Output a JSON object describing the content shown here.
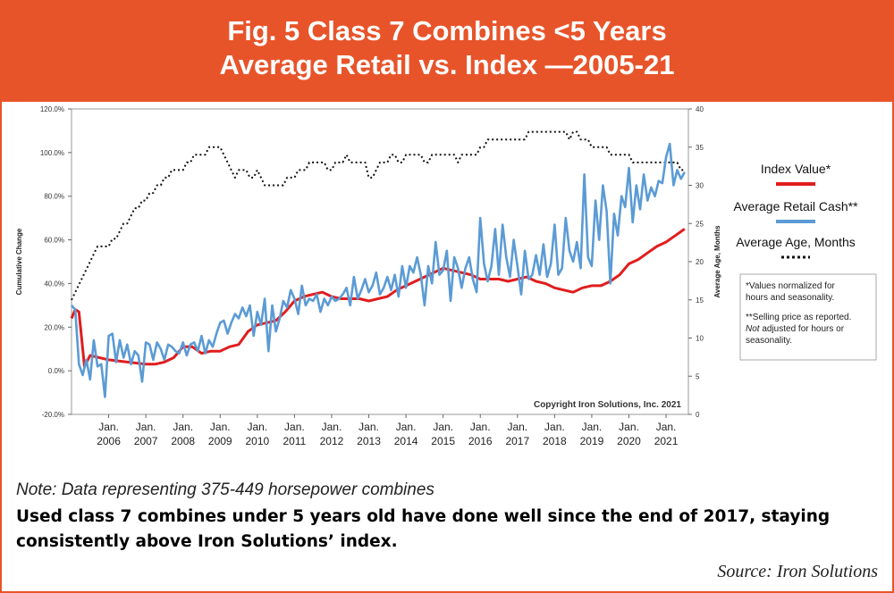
{
  "header": {
    "title_line1": "Fig. 5 Class 7 Combines <5 Years",
    "title_line2": "Average Retail vs. Index —2005-21"
  },
  "colors": {
    "brand": "#e8542a",
    "index": "#e11d1d",
    "retail": "#5b9bd5",
    "age": "#111111"
  },
  "note": "Note: Data representing 375-449 horsepower combines",
  "description": "Used class 7 combines under 5 years old have done well since the end of 2017, staying consistently above Iron Solutions’ index.",
  "source": "Source: Iron Solutions",
  "chart_data": {
    "type": "line",
    "copyright": "Copyright Iron Solutions, Inc. 2021",
    "xlabel": "",
    "ylabel_left": "Cumulative Change",
    "ylabel_right": "Average Age, Months",
    "ylim_left": [
      -20,
      120
    ],
    "ylim_right": [
      0,
      40
    ],
    "yticks_left": [
      "-20.0%",
      "0.0%",
      "20.0%",
      "40.0%",
      "60.0%",
      "80.0%",
      "100.0%",
      "120.0%"
    ],
    "yticks_right": [
      "0",
      "5",
      "10",
      "15",
      "20",
      "25",
      "30",
      "35",
      "40"
    ],
    "xlim": [
      2005.0,
      2021.6
    ],
    "xticks": [
      {
        "line1": "Jan.",
        "line2": "2006",
        "x": 2006
      },
      {
        "line1": "Jan.",
        "line2": "2007",
        "x": 2007
      },
      {
        "line1": "Jan.",
        "line2": "2008",
        "x": 2008
      },
      {
        "line1": "Jan.",
        "line2": "2009",
        "x": 2009
      },
      {
        "line1": "Jan.",
        "line2": "2010",
        "x": 2010
      },
      {
        "line1": "Jan.",
        "line2": "2011",
        "x": 2011
      },
      {
        "line1": "Jan.",
        "line2": "2012",
        "x": 2012
      },
      {
        "line1": "Jan.",
        "line2": "2013",
        "x": 2013
      },
      {
        "line1": "Jan.",
        "line2": "2014",
        "x": 2014
      },
      {
        "line1": "Jan.",
        "line2": "2015",
        "x": 2015
      },
      {
        "line1": "Jan.",
        "line2": "2016",
        "x": 2016
      },
      {
        "line1": "Jan.",
        "line2": "2017",
        "x": 2017
      },
      {
        "line1": "Jan.",
        "line2": "2018",
        "x": 2018
      },
      {
        "line1": "Jan.",
        "line2": "2019",
        "x": 2019
      },
      {
        "line1": "Jan.",
        "line2": "2020",
        "x": 2020
      },
      {
        "line1": "Jan.",
        "line2": "2021",
        "x": 2021
      }
    ],
    "legend": {
      "placement": "right",
      "entries": [
        {
          "name": "Index Value*",
          "style": "solid-red"
        },
        {
          "name": "Average Retail Cash**",
          "style": "solid-blue"
        },
        {
          "name": "Average Age, Months",
          "style": "dotted-black"
        }
      ],
      "footnotes": [
        "*Values normalized for",
        "hours and seasonality.",
        "**Selling price as reported.",
        "Not adjusted for hours or",
        "seasonality."
      ]
    },
    "series": [
      {
        "name": "Index Value*",
        "axis": "left",
        "x": [
          2005.0,
          2005.1,
          2005.2,
          2005.35,
          2005.5,
          2005.75,
          2006.0,
          2006.5,
          2007.0,
          2007.25,
          2007.5,
          2007.75,
          2008.0,
          2008.25,
          2008.5,
          2008.75,
          2009.0,
          2009.25,
          2009.5,
          2009.75,
          2010.0,
          2010.25,
          2010.5,
          2010.75,
          2011.0,
          2011.25,
          2011.5,
          2011.75,
          2012.0,
          2012.25,
          2012.5,
          2012.75,
          2013.0,
          2013.25,
          2013.5,
          2013.75,
          2014.0,
          2014.25,
          2014.5,
          2014.75,
          2015.0,
          2015.25,
          2015.5,
          2015.75,
          2016.0,
          2016.25,
          2016.5,
          2016.75,
          2017.0,
          2017.25,
          2017.5,
          2017.75,
          2018.0,
          2018.25,
          2018.5,
          2018.75,
          2019.0,
          2019.25,
          2019.5,
          2019.75,
          2020.0,
          2020.25,
          2020.5,
          2020.75,
          2021.0,
          2021.25,
          2021.5
        ],
        "values": [
          24,
          28,
          27,
          2,
          7,
          6,
          5,
          4,
          3,
          3,
          4,
          6,
          11,
          11,
          8,
          9,
          9,
          11,
          12,
          18,
          21,
          22,
          23,
          27,
          32,
          34,
          35,
          36,
          34,
          33,
          33,
          33,
          32,
          33,
          34,
          37,
          39,
          41,
          43,
          45,
          47,
          46,
          45,
          44,
          42,
          42,
          42,
          41,
          42,
          43,
          41,
          40,
          38,
          37,
          36,
          38,
          39,
          39,
          41,
          44,
          49,
          51,
          54,
          57,
          59,
          62,
          65
        ]
      },
      {
        "name": "Average Retail Cash**",
        "axis": "left",
        "x": [
          2005.0,
          2005.1,
          2005.2,
          2005.3,
          2005.4,
          2005.5,
          2005.6,
          2005.7,
          2005.8,
          2005.9,
          2006.0,
          2006.1,
          2006.2,
          2006.3,
          2006.4,
          2006.5,
          2006.6,
          2006.7,
          2006.8,
          2006.9,
          2007.0,
          2007.1,
          2007.2,
          2007.3,
          2007.4,
          2007.5,
          2007.6,
          2007.7,
          2007.8,
          2007.9,
          2008.0,
          2008.1,
          2008.2,
          2008.3,
          2008.4,
          2008.5,
          2008.6,
          2008.7,
          2008.8,
          2008.9,
          2009.0,
          2009.1,
          2009.2,
          2009.3,
          2009.4,
          2009.5,
          2009.6,
          2009.7,
          2009.8,
          2009.9,
          2010.0,
          2010.1,
          2010.2,
          2010.3,
          2010.4,
          2010.5,
          2010.6,
          2010.7,
          2010.8,
          2010.9,
          2011.0,
          2011.1,
          2011.2,
          2011.3,
          2011.4,
          2011.5,
          2011.6,
          2011.7,
          2011.8,
          2011.9,
          2012.0,
          2012.1,
          2012.2,
          2012.3,
          2012.4,
          2012.5,
          2012.6,
          2012.7,
          2012.8,
          2012.9,
          2013.0,
          2013.1,
          2013.2,
          2013.3,
          2013.4,
          2013.5,
          2013.6,
          2013.7,
          2013.8,
          2013.9,
          2014.0,
          2014.1,
          2014.2,
          2014.3,
          2014.4,
          2014.5,
          2014.6,
          2014.7,
          2014.8,
          2014.9,
          2015.0,
          2015.1,
          2015.2,
          2015.3,
          2015.4,
          2015.5,
          2015.6,
          2015.7,
          2015.8,
          2015.9,
          2016.0,
          2016.1,
          2016.2,
          2016.3,
          2016.4,
          2016.5,
          2016.6,
          2016.7,
          2016.8,
          2016.9,
          2017.0,
          2017.1,
          2017.2,
          2017.3,
          2017.4,
          2017.5,
          2017.6,
          2017.7,
          2017.8,
          2017.9,
          2018.0,
          2018.1,
          2018.2,
          2018.3,
          2018.4,
          2018.5,
          2018.6,
          2018.7,
          2018.8,
          2018.9,
          2019.0,
          2019.1,
          2019.2,
          2019.3,
          2019.4,
          2019.5,
          2019.6,
          2019.7,
          2019.8,
          2019.9,
          2020.0,
          2020.1,
          2020.2,
          2020.3,
          2020.4,
          2020.5,
          2020.6,
          2020.7,
          2020.8,
          2020.9,
          2021.0,
          2021.1,
          2021.2,
          2021.3,
          2021.4,
          2021.5
        ],
        "values": [
          30,
          28,
          3,
          -2,
          5,
          -4,
          14,
          2,
          3,
          -12,
          16,
          17,
          4,
          14,
          6,
          12,
          3,
          9,
          7,
          -5,
          13,
          12,
          5,
          13,
          10,
          5,
          12,
          11,
          9,
          8,
          13,
          7,
          12,
          13,
          9,
          16,
          8,
          14,
          11,
          17,
          22,
          23,
          17,
          22,
          26,
          24,
          29,
          25,
          30,
          16,
          27,
          21,
          33,
          9,
          30,
          18,
          24,
          32,
          29,
          37,
          33,
          26,
          39,
          30,
          33,
          32,
          35,
          27,
          33,
          30,
          34,
          32,
          33,
          35,
          38,
          30,
          43,
          33,
          37,
          42,
          36,
          39,
          45,
          35,
          38,
          43,
          37,
          44,
          34,
          48,
          38,
          48,
          45,
          52,
          44,
          30,
          48,
          40,
          59,
          44,
          46,
          55,
          32,
          52,
          47,
          38,
          47,
          52,
          42,
          36,
          70,
          49,
          41,
          48,
          65,
          44,
          67,
          52,
          43,
          60,
          48,
          35,
          55,
          42,
          44,
          53,
          44,
          58,
          43,
          49,
          67,
          44,
          47,
          70,
          55,
          50,
          59,
          47,
          90,
          52,
          48,
          78,
          60,
          85,
          73,
          40,
          72,
          62,
          80,
          75,
          93,
          68,
          85,
          74,
          90,
          78,
          84,
          80,
          87,
          86,
          98,
          104,
          85,
          92,
          88,
          91
        ]
      },
      {
        "name": "Average Age, Months",
        "axis": "right",
        "x": [
          2005.0,
          2005.1,
          2005.2,
          2005.3,
          2005.4,
          2005.5,
          2005.6,
          2005.7,
          2005.8,
          2005.9,
          2006.0,
          2006.1,
          2006.2,
          2006.3,
          2006.4,
          2006.5,
          2006.6,
          2006.7,
          2006.8,
          2006.9,
          2007.0,
          2007.1,
          2007.2,
          2007.3,
          2007.4,
          2007.5,
          2007.6,
          2007.7,
          2007.8,
          2007.9,
          2008.0,
          2008.1,
          2008.2,
          2008.3,
          2008.4,
          2008.5,
          2008.6,
          2008.7,
          2008.8,
          2008.9,
          2009.0,
          2009.1,
          2009.2,
          2009.3,
          2009.4,
          2009.5,
          2009.6,
          2009.7,
          2009.8,
          2009.9,
          2010.0,
          2010.1,
          2010.2,
          2010.3,
          2010.4,
          2010.5,
          2010.6,
          2010.7,
          2010.8,
          2010.9,
          2011.0,
          2011.1,
          2011.2,
          2011.3,
          2011.4,
          2011.5,
          2011.6,
          2011.7,
          2011.8,
          2011.9,
          2012.0,
          2012.1,
          2012.2,
          2012.3,
          2012.4,
          2012.5,
          2012.6,
          2012.7,
          2012.8,
          2012.9,
          2013.0,
          2013.1,
          2013.2,
          2013.3,
          2013.4,
          2013.5,
          2013.6,
          2013.7,
          2013.8,
          2013.9,
          2014.0,
          2014.1,
          2014.2,
          2014.3,
          2014.4,
          2014.5,
          2014.6,
          2014.7,
          2014.8,
          2014.9,
          2015.0,
          2015.1,
          2015.2,
          2015.3,
          2015.4,
          2015.5,
          2015.6,
          2015.7,
          2015.8,
          2015.9,
          2016.0,
          2016.1,
          2016.2,
          2016.3,
          2016.4,
          2016.5,
          2016.6,
          2016.7,
          2016.8,
          2016.9,
          2017.0,
          2017.1,
          2017.2,
          2017.3,
          2017.4,
          2017.5,
          2017.6,
          2017.7,
          2017.8,
          2017.9,
          2018.0,
          2018.1,
          2018.2,
          2018.3,
          2018.4,
          2018.5,
          2018.6,
          2018.7,
          2018.8,
          2018.9,
          2019.0,
          2019.1,
          2019.2,
          2019.3,
          2019.4,
          2019.5,
          2019.6,
          2019.7,
          2019.8,
          2019.9,
          2020.0,
          2020.1,
          2020.2,
          2020.3,
          2020.4,
          2020.5,
          2020.6,
          2020.7,
          2020.8,
          2020.9,
          2021.0,
          2021.1,
          2021.2,
          2021.3,
          2021.4,
          2021.5
        ],
        "values": [
          15,
          16,
          17,
          18,
          19,
          20,
          21,
          22,
          22,
          22,
          22,
          23,
          23,
          24,
          25,
          25,
          26,
          27,
          27,
          28,
          28,
          29,
          29,
          30,
          30,
          31,
          31,
          32,
          32,
          32,
          32,
          33,
          33,
          34,
          34,
          34,
          34,
          35,
          35,
          35,
          35,
          34,
          33,
          32,
          31,
          32,
          32,
          32,
          31,
          31,
          32,
          31,
          30,
          30,
          30,
          30,
          30,
          30,
          31,
          31,
          31,
          32,
          32,
          32,
          33,
          33,
          33,
          33,
          33,
          32,
          32,
          33,
          33,
          33,
          34,
          33,
          33,
          33,
          33,
          33,
          31,
          31,
          32,
          33,
          33,
          33,
          34,
          34,
          33,
          33,
          34,
          34,
          34,
          34,
          34,
          33,
          33,
          34,
          34,
          34,
          34,
          34,
          34,
          34,
          33,
          34,
          34,
          34,
          34,
          34,
          35,
          35,
          36,
          36,
          36,
          36,
          36,
          36,
          36,
          36,
          36,
          36,
          36,
          37,
          37,
          37,
          37,
          37,
          37,
          37,
          37,
          37,
          37,
          37,
          36,
          37,
          37,
          36,
          36,
          36,
          35,
          35,
          35,
          35,
          35,
          34,
          34,
          34,
          34,
          34,
          34,
          33,
          33,
          33,
          33,
          33,
          33,
          33,
          33,
          33,
          33,
          33,
          33,
          33,
          32,
          32
        ]
      }
    ]
  }
}
